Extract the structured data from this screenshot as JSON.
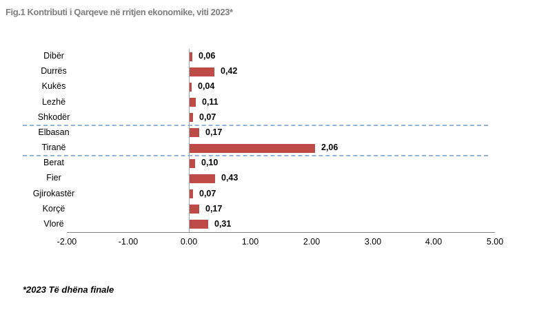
{
  "chart_data": {
    "type": "bar",
    "orientation": "horizontal",
    "title": "Fig.1 Kontributi i Qarqeve në rritjen ekonomike, viti 2023*",
    "categories": [
      "Dibër",
      "Durrës",
      "Kukës",
      "Lezhë",
      "Shkodër",
      "Elbasan",
      "Tiranë",
      "Berat",
      "Fier",
      "Gjirokastër",
      "Korçë",
      "Vlorë"
    ],
    "values": [
      0.06,
      0.42,
      0.04,
      0.11,
      0.07,
      0.17,
      2.06,
      0.1,
      0.43,
      0.07,
      0.17,
      0.31
    ],
    "value_labels": [
      "0,06",
      "0,42",
      "0,04",
      "0,11",
      "0,07",
      "0,17",
      "2,06",
      "0,10",
      "0,43",
      "0,07",
      "0,17",
      "0,31"
    ],
    "x_ticks": [
      "-2.00",
      "-1.00",
      "0.00",
      "1.00",
      "2.00",
      "3.00",
      "4.00",
      "5.00"
    ],
    "xlim": [
      -2,
      5
    ],
    "grid": false,
    "legend": "none",
    "separators_after_index": [
      4,
      6
    ],
    "footnote": "*2023 Të dhëna finale",
    "colors": {
      "bar": "#be4b48",
      "separator": "#95b3d7",
      "zero_axis": "#a6a6a6",
      "x_axis": "#808080",
      "title": "#7f7f7f",
      "text": "#000000"
    }
  }
}
